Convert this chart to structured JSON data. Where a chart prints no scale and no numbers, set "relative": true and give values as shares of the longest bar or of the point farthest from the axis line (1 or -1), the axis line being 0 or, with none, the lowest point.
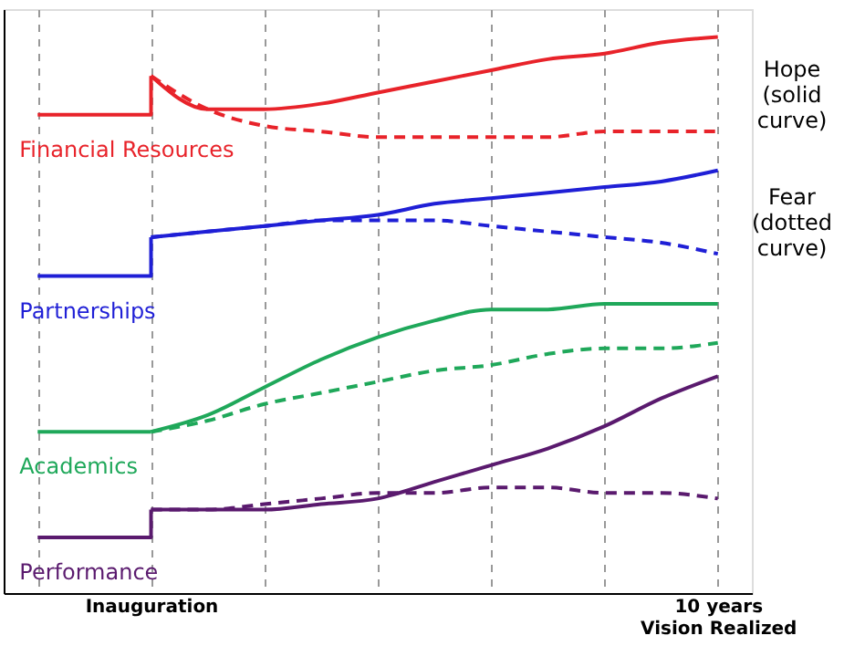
{
  "chart_data": {
    "type": "line",
    "relative": true,
    "grid": "x",
    "legend": false,
    "categories": [
      null,
      null,
      "Inauguration",
      null,
      null,
      null,
      null,
      null,
      null,
      null,
      null,
      null,
      "10 years\nVision Realized"
    ],
    "annotations": [
      "Hope\n(solid\ncurve)",
      "Fear\n(dotted\ncurve)"
    ],
    "series": [
      {
        "name": "Financial Resources",
        "type": "step",
        "color": "#e8232a",
        "values": [
          0.86,
          0.86,
          0.93,
          null,
          null,
          null,
          null,
          null,
          null,
          null,
          null,
          null,
          null
        ]
      },
      {
        "type": "line",
        "line_style": "solid",
        "color": "#e8232a",
        "values": [
          null,
          null,
          0.93,
          0.87,
          0.87,
          0.88,
          0.9,
          0.92,
          0.94,
          0.96,
          0.97,
          0.99,
          1.0
        ]
      },
      {
        "type": "line",
        "line_style": "dashed",
        "color": "#e8232a",
        "values": [
          null,
          null,
          0.93,
          0.87,
          0.84,
          0.83,
          0.82,
          0.82,
          0.82,
          0.82,
          0.83,
          0.83,
          0.83
        ]
      },
      {
        "name": "Partnerships",
        "type": "step",
        "color": "#1f1fd6",
        "values": [
          0.57,
          0.57,
          0.64,
          null,
          null,
          null,
          null,
          null,
          null,
          null,
          null,
          null,
          null
        ]
      },
      {
        "type": "line",
        "line_style": "solid",
        "color": "#1f1fd6",
        "values": [
          null,
          null,
          0.64,
          0.65,
          0.66,
          0.67,
          0.68,
          0.7,
          0.71,
          0.72,
          0.73,
          0.74,
          0.76
        ]
      },
      {
        "type": "line",
        "line_style": "dashed",
        "color": "#1f1fd6",
        "values": [
          null,
          null,
          0.64,
          0.65,
          0.66,
          0.67,
          0.67,
          0.67,
          0.66,
          0.65,
          0.64,
          0.63,
          0.61
        ]
      },
      {
        "name": "Academics",
        "type": "step",
        "color": "#1fa85a",
        "values": [
          0.29,
          0.29,
          0.29,
          null,
          null,
          null,
          null,
          null,
          null,
          null,
          null,
          null,
          null
        ]
      },
      {
        "type": "line",
        "line_style": "solid",
        "color": "#1fa85a",
        "values": [
          null,
          null,
          0.29,
          0.32,
          0.37,
          0.42,
          0.46,
          0.49,
          0.51,
          0.51,
          0.52,
          0.52,
          0.52
        ]
      },
      {
        "type": "line",
        "line_style": "dashed",
        "color": "#1fa85a",
        "values": [
          null,
          null,
          0.29,
          0.31,
          0.34,
          0.36,
          0.38,
          0.4,
          0.41,
          0.43,
          0.44,
          0.44,
          0.45
        ]
      },
      {
        "name": "Performance",
        "type": "step",
        "color": "#5a1a6e",
        "values": [
          0.1,
          0.1,
          0.15,
          null,
          null,
          null,
          null,
          null,
          null,
          null,
          null,
          null,
          null
        ]
      },
      {
        "type": "line",
        "line_style": "solid",
        "color": "#5a1a6e",
        "values": [
          null,
          null,
          0.15,
          0.15,
          0.15,
          0.16,
          0.17,
          0.2,
          0.23,
          0.26,
          0.3,
          0.35,
          0.39
        ]
      },
      {
        "type": "line",
        "line_style": "dashed",
        "color": "#5a1a6e",
        "values": [
          null,
          null,
          0.15,
          0.15,
          0.16,
          0.17,
          0.18,
          0.18,
          0.19,
          0.19,
          0.18,
          0.18,
          0.17
        ]
      }
    ]
  }
}
